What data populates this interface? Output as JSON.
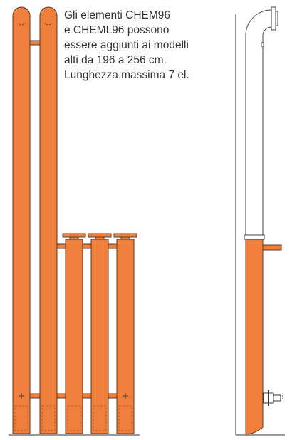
{
  "note_lines": [
    "Gli elementi CHEM96",
    "e CHEML96 possono",
    "essere aggiunti ai modelli",
    "alti da 196 a 256 cm.",
    "Lunghezza massima 7 el."
  ]
}
